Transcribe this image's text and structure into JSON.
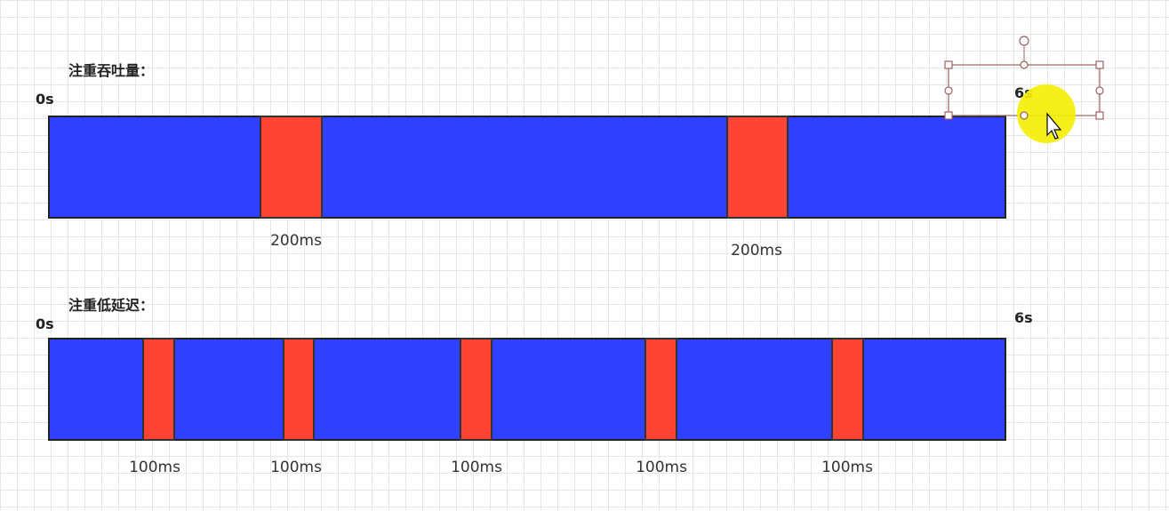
{
  "throughput": {
    "title": "注重吞吐量：",
    "start": "0s",
    "end": "6s",
    "pauses": [
      "200ms",
      "200ms"
    ]
  },
  "latency": {
    "title": "注重低延迟：",
    "start": "0s",
    "end": "6s",
    "pauses": [
      "100ms",
      "100ms",
      "100ms",
      "100ms",
      "100ms"
    ]
  }
}
